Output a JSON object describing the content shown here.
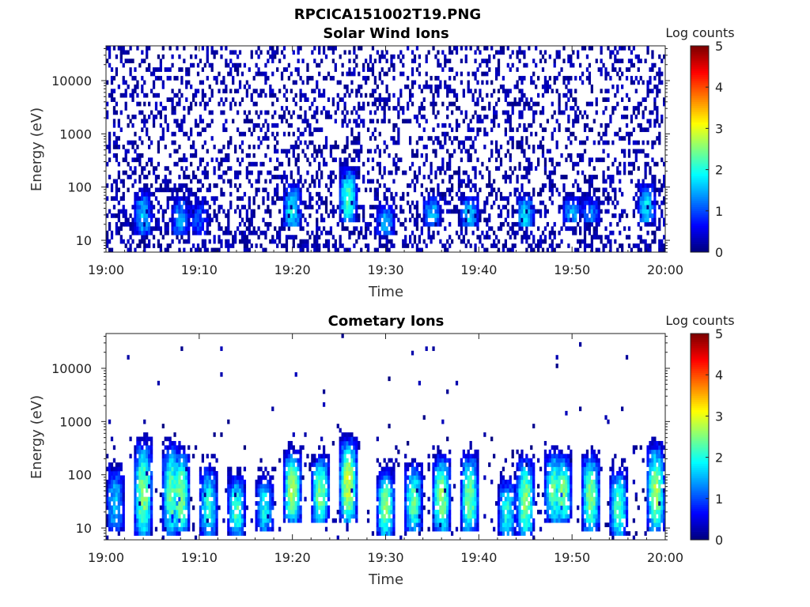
{
  "figure": {
    "title": "RPCICA151002T19.PNG"
  },
  "chart_data": [
    {
      "type": "heatmap",
      "title": "Solar Wind Ions",
      "xlabel": "Time",
      "ylabel": "Energy (eV)",
      "x_ticks": [
        "19:00",
        "19:10",
        "19:20",
        "19:30",
        "19:40",
        "19:50",
        "20:00"
      ],
      "xlim": [
        "19:00",
        "20:00"
      ],
      "y_scale": "log",
      "y_ticks": [
        "10",
        "100",
        "1000",
        "10000"
      ],
      "ylim": [
        6,
        45000
      ],
      "colorbar": {
        "label": "Log counts",
        "range": [
          0,
          5
        ],
        "ticks": [
          "0",
          "1",
          "2",
          "3",
          "4",
          "5"
        ],
        "colormap": "jet"
      },
      "background_noise_log_counts": [
        0,
        0.4
      ],
      "bursts": [
        {
          "t": "19:04",
          "e_min": 15,
          "e_max": 110,
          "peak": 1.6
        },
        {
          "t": "19:08",
          "e_min": 15,
          "e_max": 90,
          "peak": 1.4
        },
        {
          "t": "19:10",
          "e_min": 15,
          "e_max": 80,
          "peak": 1.0
        },
        {
          "t": "19:20",
          "e_min": 20,
          "e_max": 150,
          "peak": 1.9
        },
        {
          "t": "19:26",
          "e_min": 25,
          "e_max": 300,
          "peak": 2.2
        },
        {
          "t": "19:30",
          "e_min": 15,
          "e_max": 60,
          "peak": 1.6
        },
        {
          "t": "19:35",
          "e_min": 20,
          "e_max": 90,
          "peak": 1.6
        },
        {
          "t": "19:39",
          "e_min": 20,
          "e_max": 90,
          "peak": 1.7
        },
        {
          "t": "19:45",
          "e_min": 20,
          "e_max": 90,
          "peak": 1.8
        },
        {
          "t": "19:50",
          "e_min": 25,
          "e_max": 90,
          "peak": 1.5
        },
        {
          "t": "19:52",
          "e_min": 25,
          "e_max": 80,
          "peak": 1.3
        },
        {
          "t": "19:58",
          "e_min": 25,
          "e_max": 150,
          "peak": 1.8
        }
      ]
    },
    {
      "type": "heatmap",
      "title": "Cometary Ions",
      "xlabel": "Time",
      "ylabel": "Energy (eV)",
      "x_ticks": [
        "19:00",
        "19:10",
        "19:20",
        "19:30",
        "19:40",
        "19:50",
        "20:00"
      ],
      "xlim": [
        "19:00",
        "20:00"
      ],
      "y_scale": "log",
      "y_ticks": [
        "10",
        "100",
        "1000",
        "10000"
      ],
      "ylim": [
        6,
        45000
      ],
      "colorbar": {
        "label": "Log counts",
        "range": [
          0,
          5
        ],
        "ticks": [
          "0",
          "1",
          "2",
          "3",
          "4",
          "5"
        ],
        "colormap": "jet"
      },
      "background_noise_log_counts": [
        0,
        0.3
      ],
      "bursts": [
        {
          "t": "19:01",
          "e_min": 10,
          "e_max": 180,
          "peak": 1.6
        },
        {
          "t": "19:04",
          "e_min": 8,
          "e_max": 500,
          "peak": 2.6
        },
        {
          "t": "19:07",
          "e_min": 8,
          "e_max": 450,
          "peak": 2.4
        },
        {
          "t": "19:08",
          "e_min": 10,
          "e_max": 350,
          "peak": 2.6
        },
        {
          "t": "19:11",
          "e_min": 8,
          "e_max": 180,
          "peak": 2.0
        },
        {
          "t": "19:14",
          "e_min": 8,
          "e_max": 120,
          "peak": 2.2
        },
        {
          "t": "19:17",
          "e_min": 10,
          "e_max": 120,
          "peak": 1.9
        },
        {
          "t": "19:20",
          "e_min": 15,
          "e_max": 350,
          "peak": 2.7
        },
        {
          "t": "19:23",
          "e_min": 15,
          "e_max": 280,
          "peak": 2.5
        },
        {
          "t": "19:26",
          "e_min": 15,
          "e_max": 600,
          "peak": 2.9
        },
        {
          "t": "19:30",
          "e_min": 8,
          "e_max": 150,
          "peak": 2.5
        },
        {
          "t": "19:33",
          "e_min": 10,
          "e_max": 200,
          "peak": 2.3
        },
        {
          "t": "19:36",
          "e_min": 10,
          "e_max": 280,
          "peak": 2.6
        },
        {
          "t": "19:39",
          "e_min": 10,
          "e_max": 300,
          "peak": 2.5
        },
        {
          "t": "19:43",
          "e_min": 8,
          "e_max": 100,
          "peak": 2.0
        },
        {
          "t": "19:45",
          "e_min": 8,
          "e_max": 250,
          "peak": 2.6
        },
        {
          "t": "19:48",
          "e_min": 15,
          "e_max": 350,
          "peak": 2.3
        },
        {
          "t": "19:49",
          "e_min": 15,
          "e_max": 300,
          "peak": 2.5
        },
        {
          "t": "19:52",
          "e_min": 10,
          "e_max": 300,
          "peak": 2.5
        },
        {
          "t": "19:55",
          "e_min": 8,
          "e_max": 150,
          "peak": 2.3
        },
        {
          "t": "19:59",
          "e_min": 10,
          "e_max": 450,
          "peak": 2.7
        }
      ]
    }
  ]
}
